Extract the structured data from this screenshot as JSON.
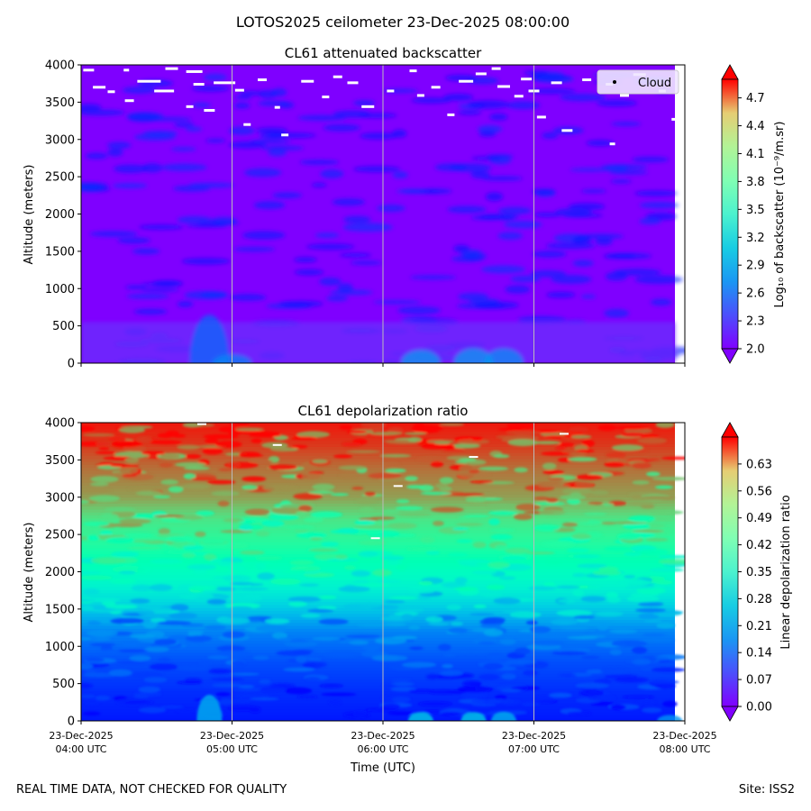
{
  "suptitle": "LOTOS2025 ceilometer 23-Dec-2025 08:00:00",
  "footer": {
    "left": "REAL TIME DATA, NOT CHECKED FOR QUALITY",
    "right": "Site: ISS2"
  },
  "colors": {
    "axis": "#000000",
    "gridline": "#bbbbbb",
    "cloud": "#ffffff"
  },
  "chart_data": [
    {
      "type": "heatmap",
      "title": "CL61 attenuated backscatter",
      "ylabel": "Altitude (meters)",
      "xlabel": "",
      "ylim": [
        0,
        4000
      ],
      "yticks": [
        0,
        500,
        1000,
        1500,
        2000,
        2500,
        3000,
        3500,
        4000
      ],
      "xlim_hours": [
        4,
        8
      ],
      "legend": {
        "label": "Cloud",
        "placement": "top-right"
      },
      "colorbar": {
        "label": "Log₁₀ of backscatter (10⁻⁹/m.sr)",
        "range": [
          2.0,
          4.9
        ],
        "ticks": [
          2.0,
          2.3,
          2.6,
          2.9,
          3.2,
          3.5,
          3.8,
          4.1,
          4.4,
          4.7
        ],
        "tick_labels": [
          "2.0",
          "2.3",
          "2.6",
          "2.9",
          "3.2",
          "3.5",
          "3.8",
          "4.1",
          "4.4",
          "4.7"
        ],
        "extend": "both",
        "colormap": "rainbow"
      },
      "summary": "Backscatter mostly ~2.0-2.2 across all altitudes; slightly higher (~2.3-2.6) below 600 m; cloud detections scattered between 3000 and 4000 m."
    },
    {
      "type": "heatmap",
      "title": "CL61 depolarization ratio",
      "ylabel": "Altitude (meters)",
      "xlabel": "Time (UTC)",
      "ylim": [
        0,
        4000
      ],
      "yticks": [
        0,
        500,
        1000,
        1500,
        2000,
        2500,
        3000,
        3500,
        4000
      ],
      "xlim_hours": [
        4,
        8
      ],
      "xticks_hours": [
        4,
        5,
        6,
        7,
        8
      ],
      "xtick_labels": [
        [
          "23-Dec-2025",
          "04:00 UTC"
        ],
        [
          "23-Dec-2025",
          "05:00 UTC"
        ],
        [
          "23-Dec-2025",
          "06:00 UTC"
        ],
        [
          "23-Dec-2025",
          "07:00 UTC"
        ],
        [
          "23-Dec-2025",
          "08:00 UTC"
        ]
      ],
      "colorbar": {
        "label": "Linear depolarization ratio",
        "range": [
          0.0,
          0.7
        ],
        "ticks": [
          0.0,
          0.07,
          0.14,
          0.21,
          0.28,
          0.35,
          0.42,
          0.49,
          0.56,
          0.63
        ],
        "tick_labels": [
          "0.00",
          "0.07",
          "0.14",
          "0.21",
          "0.28",
          "0.35",
          "0.42",
          "0.49",
          "0.56",
          "0.63"
        ],
        "extend": "both",
        "colormap": "rainbow"
      },
      "summary": "Depolarization increases with altitude: ~0.02-0.1 below 1200 m, ~0.15-0.3 at 1500-2200 m, ~0.35-0.5 at 2500-3000 m, ~0.5-0.65 above 3000 m."
    }
  ]
}
